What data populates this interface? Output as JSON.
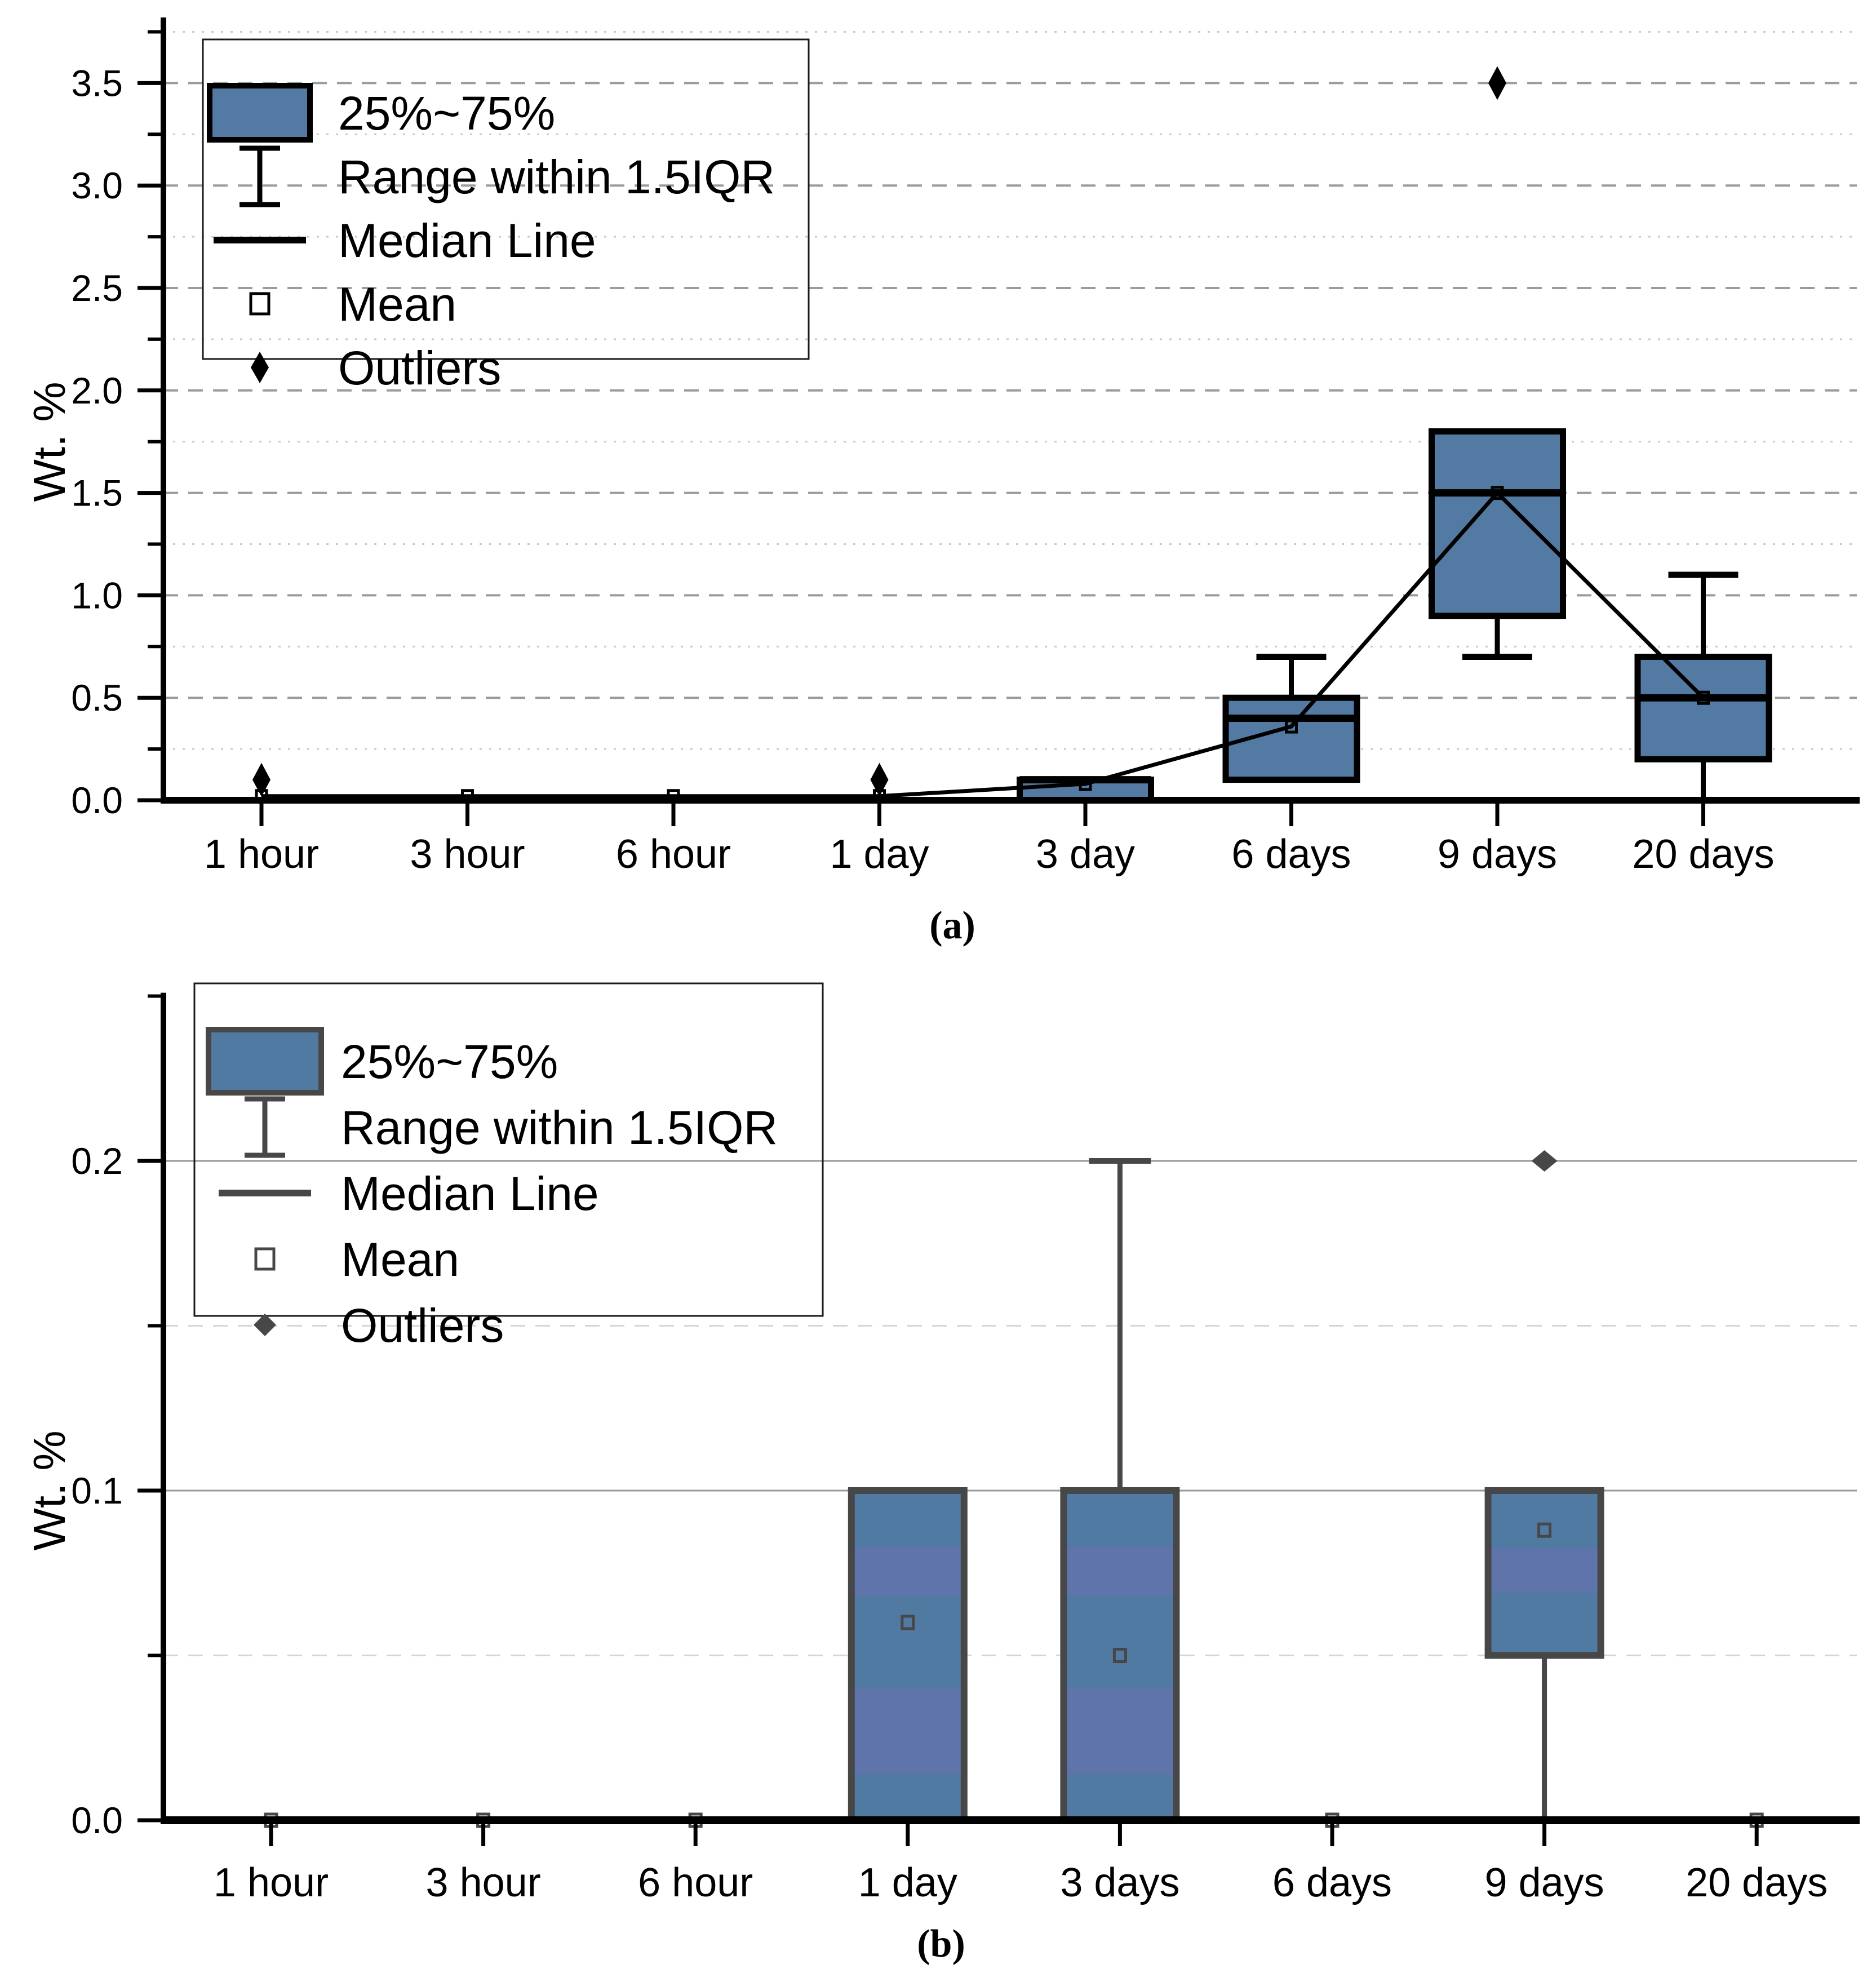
{
  "page": {
    "background": "#FFFFFF"
  },
  "chart_data": [
    {
      "id": "a",
      "type": "box",
      "title": "",
      "ylabel": "Wt. %",
      "xlabel": "",
      "caption": "(a)",
      "categories": [
        "1 hour",
        "3 hour",
        "6 hour",
        "1 day",
        "3 day",
        "6 days",
        "9 days",
        "20 days"
      ],
      "ylim": [
        0,
        3.82
      ],
      "yticks": [
        {
          "v": 0.0,
          "label": "0.0"
        },
        {
          "v": 0.5,
          "label": "0.5"
        },
        {
          "v": 1.0,
          "label": "1.0"
        },
        {
          "v": 1.5,
          "label": "1.5"
        },
        {
          "v": 2.0,
          "label": "2.0"
        },
        {
          "v": 2.5,
          "label": "2.5"
        },
        {
          "v": 3.0,
          "label": "3.0"
        },
        {
          "v": 3.5,
          "label": "3.5"
        }
      ],
      "yticks_minor": [
        0.25,
        0.75,
        1.25,
        1.75,
        2.25,
        2.75,
        3.25,
        3.75
      ],
      "grid": {
        "major_values": [
          0.5,
          1.0,
          1.5,
          2.0,
          2.5,
          3.0,
          3.5
        ],
        "major_style": "dashed",
        "minor_values": [
          0.25,
          0.75,
          1.25,
          1.75,
          2.25,
          2.75,
          3.25,
          3.75
        ],
        "minor_style": "dotted"
      },
      "legend": {
        "position": "top-left",
        "entries": [
          "25%~75%",
          "Range within 1.5IQR",
          "Median Line",
          "Mean",
          "Outliers"
        ]
      },
      "boxes": [
        {
          "category": "1 hour",
          "mean": 0.02,
          "outliers": [
            0.1
          ]
        },
        {
          "category": "3 hour",
          "mean": 0.02,
          "outliers": []
        },
        {
          "category": "6 hour",
          "mean": 0.02,
          "outliers": []
        },
        {
          "category": "1 day",
          "mean": 0.02,
          "outliers": [
            0.1
          ]
        },
        {
          "category": "3 day",
          "q1": 0.0,
          "median": 0.1,
          "q3": 0.1,
          "mean": 0.08,
          "outliers": []
        },
        {
          "category": "6 days",
          "q1": 0.1,
          "median": 0.4,
          "q3": 0.5,
          "whisker_high": 0.7,
          "mean": 0.36,
          "outliers": []
        },
        {
          "category": "9 days",
          "q1": 0.9,
          "median": 1.5,
          "q3": 1.8,
          "whisker_low": 0.7,
          "mean": 1.5,
          "outliers": [
            3.5
          ]
        },
        {
          "category": "20 days",
          "q1": 0.2,
          "median": 0.5,
          "q3": 0.7,
          "whisker_low": 0.0,
          "whisker_high": 1.1,
          "mean": 0.5,
          "outliers": []
        }
      ],
      "mean_line": true,
      "style": {
        "line_color": "#000000",
        "box_fill": "#537AA2",
        "grid_major_color": "#9B9B9B",
        "grid_minor_color": "#C9C9C9"
      }
    },
    {
      "id": "b",
      "type": "box",
      "title": "",
      "ylabel": "Wt. %",
      "xlabel": "",
      "caption": "(b)",
      "categories": [
        "1 hour",
        "3 hour",
        "6 hour",
        "1 day",
        "3 days",
        "6 days",
        "9 days",
        "20 days"
      ],
      "ylim": [
        0,
        0.251
      ],
      "yticks": [
        {
          "v": 0.0,
          "label": "0.0"
        },
        {
          "v": 0.1,
          "label": "0.1"
        },
        {
          "v": 0.2,
          "label": "0.2"
        }
      ],
      "yticks_minor": [
        0.05,
        0.15,
        0.25
      ],
      "grid": {
        "major_values": [
          0.1,
          0.2
        ],
        "major_style": "solid",
        "minor_values": [
          0.05,
          0.15
        ],
        "minor_style": "dashed"
      },
      "legend": {
        "position": "top-left",
        "entries": [
          "25%~75%",
          "Range within 1.5IQR",
          "Median Line",
          "Mean",
          "Outliers"
        ]
      },
      "boxes": [
        {
          "category": "1 hour",
          "mean": 0.0,
          "outliers": []
        },
        {
          "category": "3 hour",
          "mean": 0.0,
          "outliers": []
        },
        {
          "category": "6 hour",
          "mean": 0.0,
          "outliers": []
        },
        {
          "category": "1 day",
          "q1": 0.0,
          "median": 0.1,
          "q3": 0.1,
          "mean": 0.06,
          "outliers": []
        },
        {
          "category": "3 days",
          "q1": 0.0,
          "median": 0.1,
          "q3": 0.1,
          "whisker_high": 0.2,
          "mean": 0.05,
          "outliers": []
        },
        {
          "category": "6 days",
          "mean": 0.0,
          "outliers": []
        },
        {
          "category": "9 days",
          "q1": 0.05,
          "median": 0.1,
          "q3": 0.1,
          "whisker_low": 0.0,
          "mean": 0.088,
          "outliers": [
            0.2
          ]
        },
        {
          "category": "20 days",
          "mean": 0.0,
          "outliers": []
        }
      ],
      "mean_line": false,
      "style": {
        "line_color": "#474747",
        "box_fill": "#517AA3",
        "box_band_color": "#6074AC",
        "grid_major_color": "#989898",
        "grid_minor_color": "#D5D5D5"
      }
    }
  ]
}
